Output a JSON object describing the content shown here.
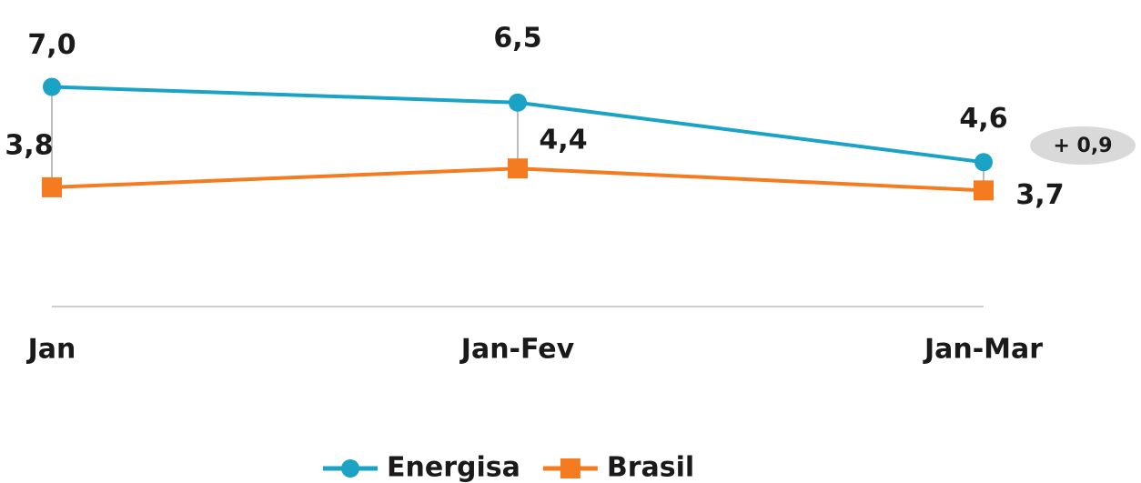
{
  "chart_data": {
    "type": "line",
    "categories": [
      "Jan",
      "Jan-Fev",
      "Jan-Mar"
    ],
    "series": [
      {
        "name": "Energisa",
        "color": "#1ba3c6",
        "marker": "circle",
        "values": [
          7.0,
          6.5,
          4.6
        ],
        "value_labels": [
          "7,0",
          "6,5",
          "4,6"
        ]
      },
      {
        "name": "Brasil",
        "color": "#f47b20",
        "marker": "square",
        "values": [
          3.8,
          4.4,
          3.7
        ],
        "value_labels": [
          "3,8",
          "4,4",
          "3,7"
        ]
      }
    ],
    "ylim": [
      0,
      8
    ],
    "annotations": [
      "+ 0,9"
    ],
    "legend": "bottom"
  }
}
